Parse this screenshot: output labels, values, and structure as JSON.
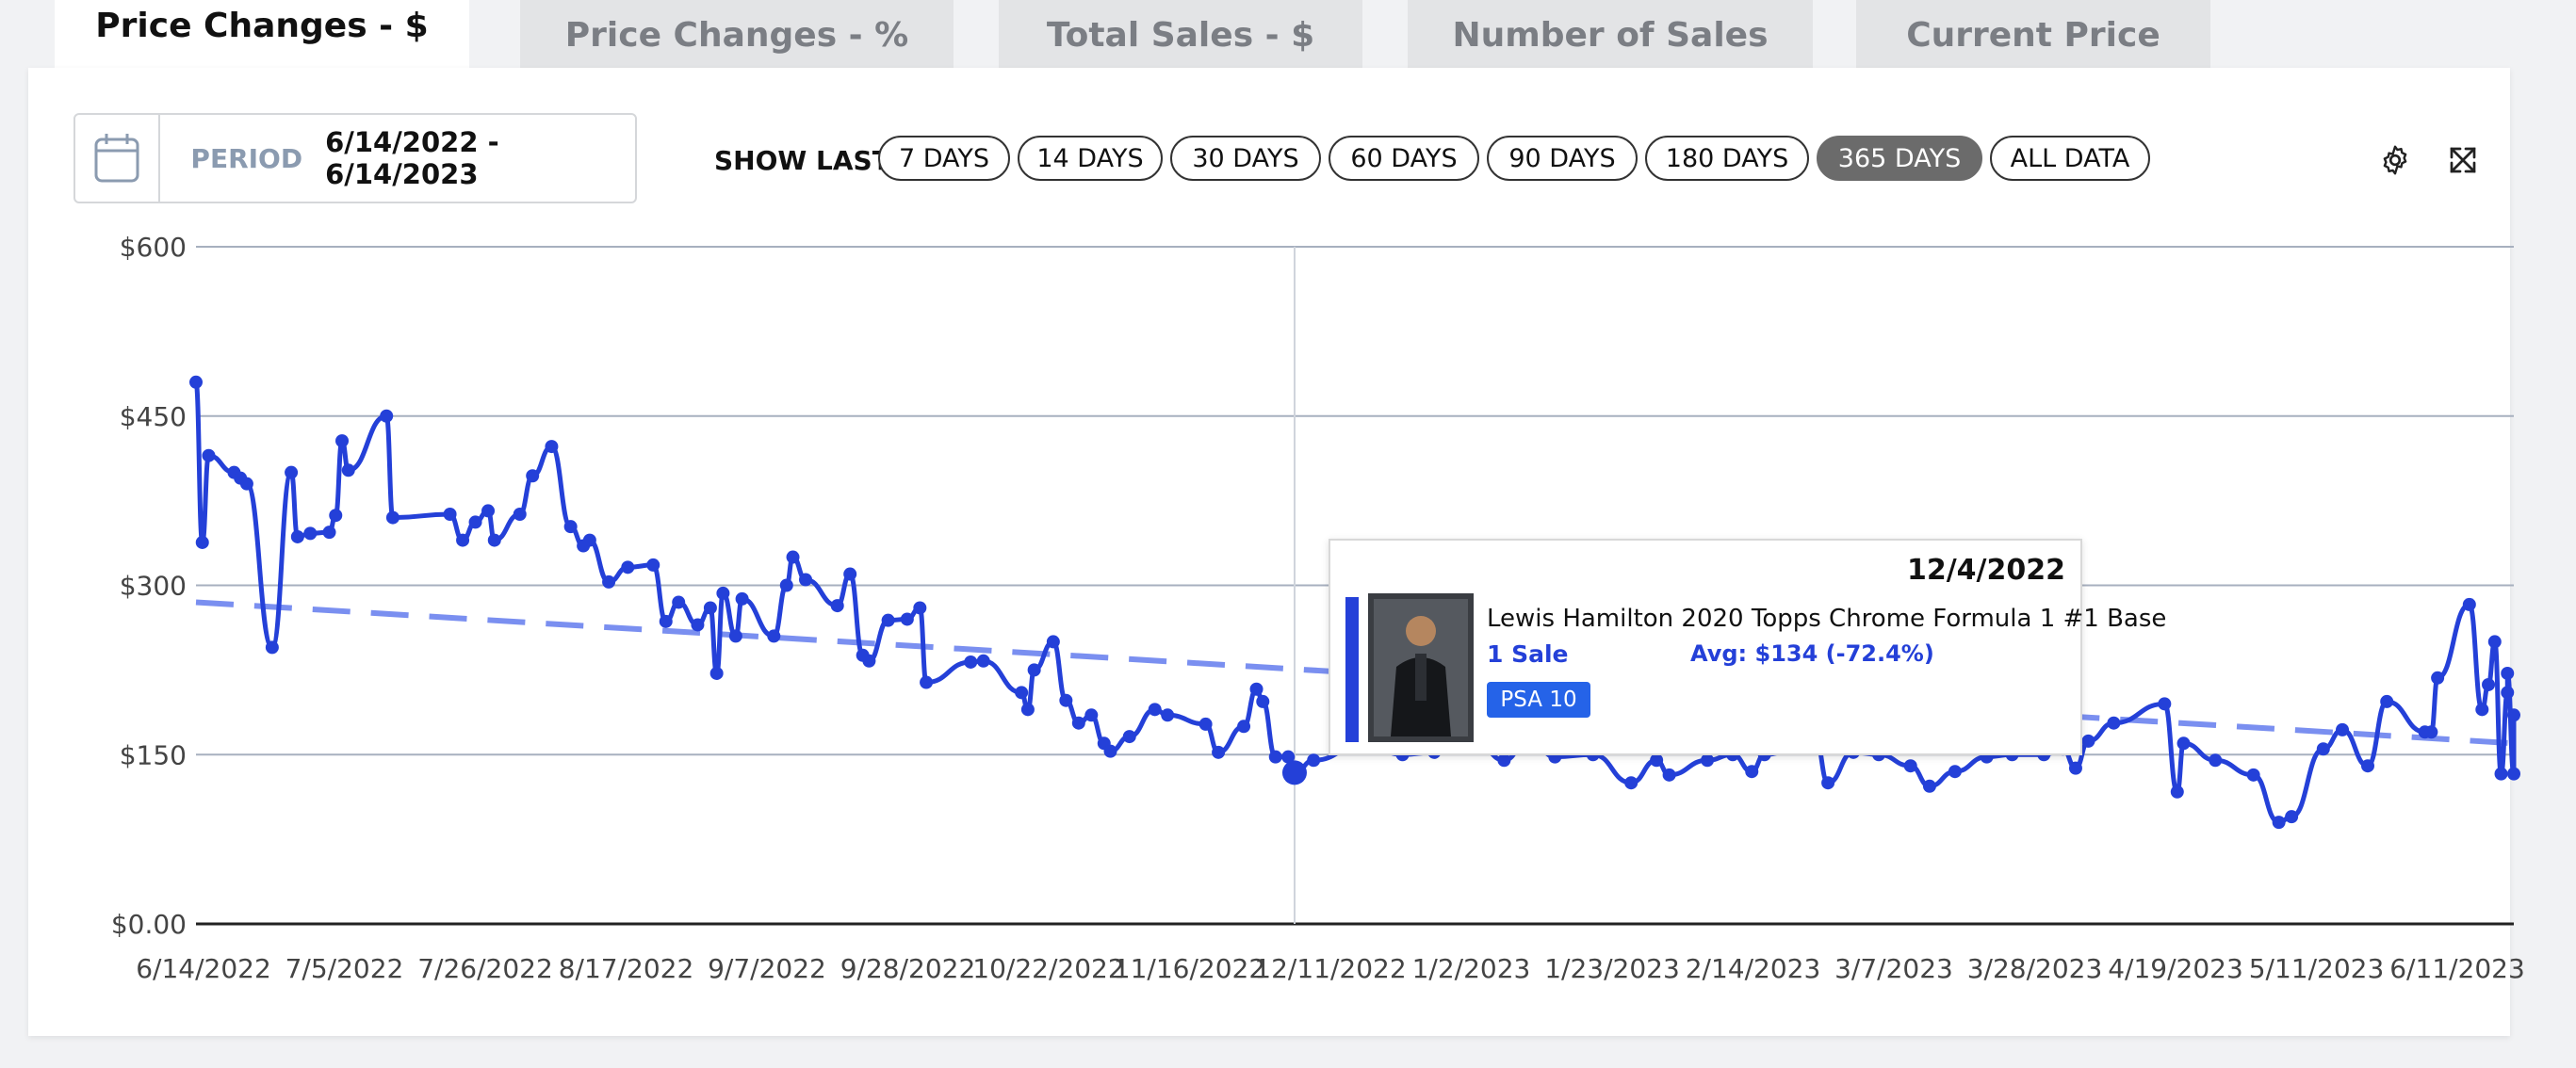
{
  "tabs": [
    {
      "label": "Price Changes - $",
      "active": true
    },
    {
      "label": "Price Changes - %",
      "active": false
    },
    {
      "label": "Total Sales - $",
      "active": false
    },
    {
      "label": "Number of Sales",
      "active": false
    },
    {
      "label": "Current Price",
      "active": false
    }
  ],
  "period": {
    "label": "PERIOD",
    "value": "6/14/2022 - 6/14/2023",
    "icon": "calendar-icon"
  },
  "show_last": {
    "label": "SHOW LAST",
    "options": [
      "7 DAYS",
      "14 DAYS",
      "30 DAYS",
      "60 DAYS",
      "90 DAYS",
      "180 DAYS",
      "365 DAYS",
      "ALL DATA"
    ],
    "selected": "365 DAYS"
  },
  "toolbar": {
    "settings_icon": "gear-icon",
    "expand_icon": "expand-icon"
  },
  "colors": {
    "line": "#2440d8",
    "trend": "#7a8ff0",
    "accent": "#2563e8",
    "selected_button": "#6b6b6b"
  },
  "tooltip": {
    "date": "12/4/2022",
    "title": "Lewis Hamilton 2020 Topps Chrome Formula 1 #1 Base",
    "sales": "1 Sale",
    "avg": "Avg: $134 (-72.4%)",
    "grade": "PSA 10"
  },
  "chart_data": {
    "type": "line",
    "title": "",
    "xlabel": "",
    "ylabel": "",
    "y_ticks": [
      "$0.00",
      "$150",
      "$300",
      "$450",
      "$600"
    ],
    "y_tick_values": [
      0,
      150,
      300,
      450,
      600
    ],
    "ylim": [
      0,
      600
    ],
    "x_ticks": [
      "6/14/2022",
      "7/5/2022",
      "7/26/2022",
      "8/17/2022",
      "9/7/2022",
      "9/28/2022",
      "10/22/2022",
      "11/16/2022",
      "12/11/2022",
      "1/2/2023",
      "1/23/2023",
      "2/14/2023",
      "3/7/2023",
      "3/28/2023",
      "4/19/2023",
      "5/11/2023",
      "6/11/2023"
    ],
    "xlim": [
      "2022-06-14",
      "2023-06-14"
    ],
    "grid": true,
    "highlight": {
      "x": "2022-12-04",
      "y": 134
    },
    "series": [
      {
        "kind": "price",
        "points": [
          [
            "2022-06-14",
            480
          ],
          [
            "2022-06-15",
            338
          ],
          [
            "2022-06-16",
            415
          ],
          [
            "2022-06-20",
            400
          ],
          [
            "2022-06-21",
            395
          ],
          [
            "2022-06-22",
            390
          ],
          [
            "2022-06-26",
            245
          ],
          [
            "2022-06-29",
            400
          ],
          [
            "2022-06-30",
            343
          ],
          [
            "2022-07-02",
            346
          ],
          [
            "2022-07-05",
            347
          ],
          [
            "2022-07-06",
            362
          ],
          [
            "2022-07-07",
            428
          ],
          [
            "2022-07-08",
            402
          ],
          [
            "2022-07-14",
            450
          ],
          [
            "2022-07-15",
            360
          ],
          [
            "2022-07-24",
            363
          ],
          [
            "2022-07-26",
            340
          ],
          [
            "2022-07-28",
            356
          ],
          [
            "2022-07-30",
            366
          ],
          [
            "2022-07-31",
            340
          ],
          [
            "2022-08-04",
            363
          ],
          [
            "2022-08-06",
            397
          ],
          [
            "2022-08-09",
            423
          ],
          [
            "2022-08-12",
            352
          ],
          [
            "2022-08-14",
            335
          ],
          [
            "2022-08-15",
            340
          ],
          [
            "2022-08-18",
            303
          ],
          [
            "2022-08-21",
            316
          ],
          [
            "2022-08-25",
            318
          ],
          [
            "2022-08-27",
            268
          ],
          [
            "2022-08-29",
            285
          ],
          [
            "2022-09-01",
            265
          ],
          [
            "2022-09-03",
            280
          ],
          [
            "2022-09-04",
            222
          ],
          [
            "2022-09-05",
            293
          ],
          [
            "2022-09-07",
            255
          ],
          [
            "2022-09-08",
            288
          ],
          [
            "2022-09-13",
            255
          ],
          [
            "2022-09-15",
            300
          ],
          [
            "2022-09-16",
            325
          ],
          [
            "2022-09-18",
            305
          ],
          [
            "2022-09-23",
            282
          ],
          [
            "2022-09-25",
            310
          ],
          [
            "2022-09-27",
            238
          ],
          [
            "2022-09-28",
            233
          ],
          [
            "2022-10-01",
            269
          ],
          [
            "2022-10-04",
            270
          ],
          [
            "2022-10-06",
            280
          ],
          [
            "2022-10-07",
            214
          ],
          [
            "2022-10-14",
            232
          ],
          [
            "2022-10-16",
            233
          ],
          [
            "2022-10-22",
            205
          ],
          [
            "2022-10-23",
            190
          ],
          [
            "2022-10-24",
            225
          ],
          [
            "2022-10-27",
            250
          ],
          [
            "2022-10-29",
            198
          ],
          [
            "2022-10-31",
            178
          ],
          [
            "2022-11-02",
            185
          ],
          [
            "2022-11-04",
            160
          ],
          [
            "2022-11-05",
            153
          ],
          [
            "2022-11-08",
            166
          ],
          [
            "2022-11-12",
            190
          ],
          [
            "2022-11-14",
            185
          ],
          [
            "2022-11-20",
            177
          ],
          [
            "2022-11-22",
            152
          ],
          [
            "2022-11-26",
            175
          ],
          [
            "2022-11-28",
            208
          ],
          [
            "2022-11-29",
            197
          ],
          [
            "2022-12-01",
            148
          ],
          [
            "2022-12-03",
            148
          ],
          [
            "2022-12-04",
            134
          ],
          [
            "2022-12-07",
            145
          ],
          [
            "2022-12-15",
            160
          ],
          [
            "2022-12-21",
            150
          ],
          [
            "2022-12-26",
            152
          ],
          [
            "2023-01-02",
            158
          ],
          [
            "2023-01-06",
            145
          ],
          [
            "2023-01-10",
            165
          ],
          [
            "2023-01-14",
            148
          ],
          [
            "2023-01-20",
            150
          ],
          [
            "2023-01-26",
            125
          ],
          [
            "2023-01-30",
            145
          ],
          [
            "2023-02-01",
            132
          ],
          [
            "2023-02-07",
            145
          ],
          [
            "2023-02-11",
            150
          ],
          [
            "2023-02-14",
            135
          ],
          [
            "2023-02-16",
            150
          ],
          [
            "2023-02-24",
            165
          ],
          [
            "2023-02-26",
            125
          ],
          [
            "2023-03-02",
            152
          ],
          [
            "2023-03-06",
            150
          ],
          [
            "2023-03-11",
            140
          ],
          [
            "2023-03-14",
            122
          ],
          [
            "2023-03-18",
            135
          ],
          [
            "2023-03-23",
            148
          ],
          [
            "2023-03-27",
            150
          ],
          [
            "2023-04-01",
            150
          ],
          [
            "2023-04-04",
            155
          ],
          [
            "2023-04-06",
            138
          ],
          [
            "2023-04-08",
            162
          ],
          [
            "2023-04-12",
            178
          ],
          [
            "2023-04-20",
            195
          ],
          [
            "2023-04-22",
            117
          ],
          [
            "2023-04-23",
            160
          ],
          [
            "2023-04-28",
            145
          ],
          [
            "2023-05-04",
            132
          ],
          [
            "2023-05-08",
            90
          ],
          [
            "2023-05-10",
            95
          ],
          [
            "2023-05-15",
            155
          ],
          [
            "2023-05-18",
            172
          ],
          [
            "2023-05-22",
            140
          ],
          [
            "2023-05-25",
            197
          ],
          [
            "2023-05-31",
            170
          ],
          [
            "2023-06-01",
            170
          ],
          [
            "2023-06-02",
            218
          ],
          [
            "2023-06-07",
            283
          ],
          [
            "2023-06-09",
            190
          ],
          [
            "2023-06-10",
            212
          ],
          [
            "2023-06-11",
            250
          ],
          [
            "2023-06-12",
            133
          ],
          [
            "2023-06-13",
            205
          ],
          [
            "2023-06-13",
            222
          ],
          [
            "2023-06-14",
            133
          ],
          [
            "2023-06-14",
            185
          ]
        ]
      },
      {
        "kind": "trend",
        "points": [
          [
            "2022-06-14",
            285
          ],
          [
            "2023-06-14",
            160
          ]
        ]
      }
    ]
  }
}
